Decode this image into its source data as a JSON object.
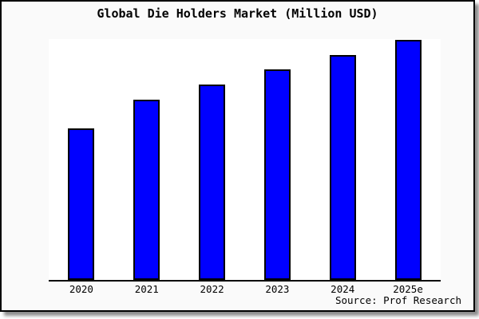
{
  "chart_data": {
    "type": "bar",
    "title": "Global Die Holders Market (Million USD)",
    "categories": [
      "2020",
      "2021",
      "2022",
      "2023",
      "2024",
      "2025e"
    ],
    "values": [
      63.1,
      75.1,
      81.4,
      87.7,
      93.7,
      100
    ],
    "value_basis": "relative heights (chart shows no y-axis ticks); normalized to 2025e = 100",
    "xlabel": "",
    "ylabel": "",
    "ylim": [
      0,
      100.33
    ],
    "grid": false,
    "legend": "none",
    "colors": {
      "bar_fill": "#0000ff",
      "bar_border": "#000000",
      "plot_background": "#ffffff",
      "figure_background": "#fafafa",
      "frame_border": "#000000"
    }
  },
  "source": {
    "text": "Source: Prof Research"
  }
}
